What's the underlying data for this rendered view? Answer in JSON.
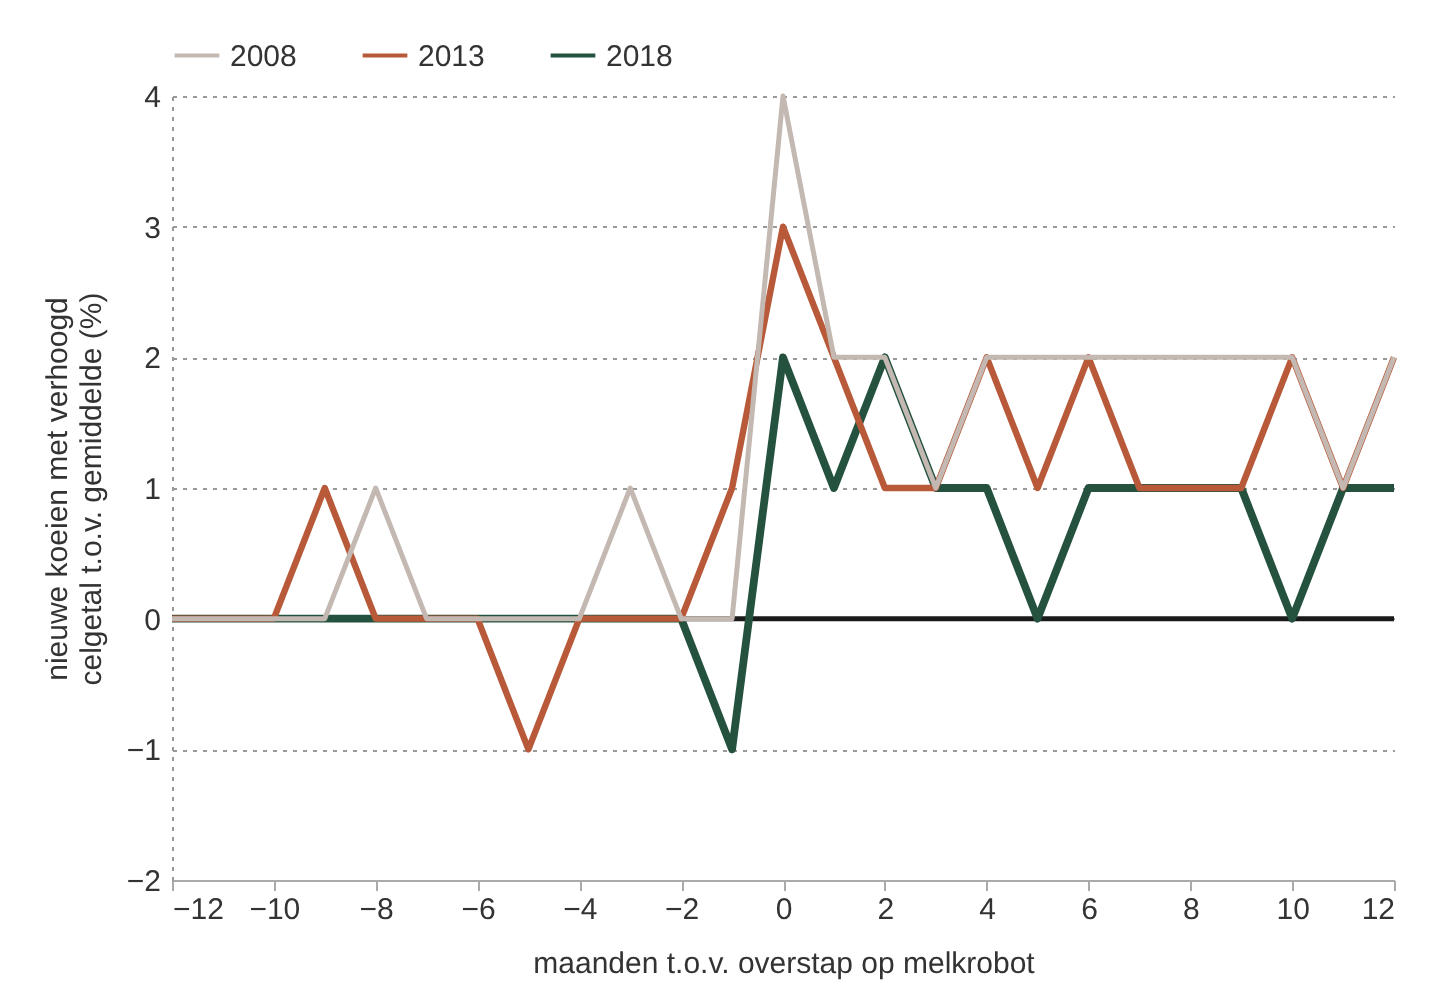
{
  "chart_data": {
    "type": "line",
    "xlabel": "maanden t.o.v. overstap op melkrobot",
    "ylabel": "nieuwe koeien met verhoogd\ncelgetal t.o.v. gemiddelde (%)",
    "x": [
      -12,
      -11,
      -10,
      -9,
      -8,
      -7,
      -6,
      -5,
      -4,
      -3,
      -2,
      -1,
      0,
      1,
      2,
      3,
      4,
      5,
      6,
      7,
      8,
      9,
      10,
      11,
      12
    ],
    "series": [
      {
        "name": "2008",
        "color": "#c4b9b2",
        "values": [
          0,
          0,
          0,
          0,
          1,
          0,
          0,
          0,
          0,
          1,
          0,
          0,
          4,
          2,
          2,
          1,
          2,
          2,
          2,
          2,
          2,
          2,
          2,
          1,
          2
        ]
      },
      {
        "name": "2013",
        "color": "#b85a3a",
        "values": [
          0,
          0,
          0,
          1,
          0,
          0,
          0,
          -1,
          0,
          0,
          0,
          1,
          3,
          2,
          1,
          1,
          2,
          1,
          2,
          1,
          1,
          1,
          2,
          1,
          2
        ]
      },
      {
        "name": "2018",
        "color": "#24523f",
        "values": [
          0,
          0,
          0,
          0,
          0,
          0,
          0,
          0,
          0,
          0,
          0,
          -1,
          2,
          1,
          2,
          1,
          1,
          0,
          1,
          1,
          1,
          1,
          0,
          1,
          1
        ]
      }
    ],
    "xlim": [
      -12,
      12
    ],
    "xticks": [
      -12,
      -10,
      -8,
      -6,
      -4,
      -2,
      0,
      2,
      4,
      6,
      8,
      10,
      12
    ],
    "ylim": [
      -2,
      4
    ],
    "yticks": [
      -2,
      -1,
      0,
      1,
      2,
      3,
      4
    ],
    "ref_lines": [
      {
        "axis": "y",
        "value": 0,
        "color": "#1a1a1a"
      }
    ],
    "grid": "y",
    "legend": "top left",
    "marker": "none",
    "line_style": "solid"
  }
}
